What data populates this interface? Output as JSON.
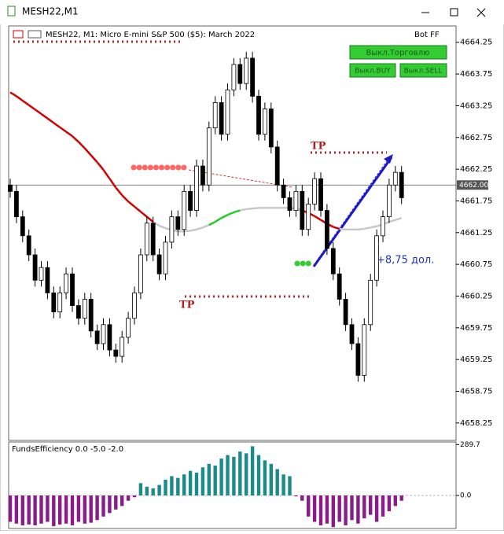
{
  "window_title": "MESH22,M1",
  "chart_data": [
    {
      "type": "candlestick",
      "title": "MESH22, M1:  Micro E-mini S&P 500 ($5): March 2022",
      "badge": "Bot FF",
      "buttons": [
        "Выкл.Торговлю",
        "Выкл.BUY",
        "Выкл.SELL"
      ],
      "annotations": [
        "TP",
        "TP",
        "+8,75 дол."
      ],
      "current_price": {
        "value": 4662.0,
        "label": "4662.00"
      },
      "ylim": [
        4658.0,
        4664.47
      ],
      "yticks": [
        4664.25,
        4663.75,
        4663.25,
        4662.75,
        4662.25,
        4661.75,
        4661.25,
        4660.75,
        4660.25,
        4659.75,
        4659.25,
        4658.75,
        4658.25
      ],
      "open": [
        4662.0,
        4661.9,
        4661.5,
        4661.2,
        4660.9,
        4660.5,
        4660.7,
        4660.3,
        4660.0,
        4660.3,
        4660.6,
        4660.1,
        4659.9,
        4660.2,
        4659.7,
        4659.5,
        4659.8,
        4659.4,
        4659.3,
        4659.6,
        4659.9,
        4660.3,
        4660.9,
        4661.4,
        4660.9,
        4660.6,
        4661.1,
        4661.5,
        4661.3,
        4661.9,
        4661.6,
        4662.3,
        4662.0,
        4662.9,
        4663.3,
        4662.8,
        4663.5,
        4663.9,
        4663.6,
        4664.0,
        4663.4,
        4662.8,
        4663.2,
        4662.6,
        4662.0,
        4661.8,
        4661.6,
        4661.9,
        4661.3,
        4661.7,
        4662.1,
        4661.6,
        4661.0,
        4660.6,
        4660.2,
        4659.8,
        4659.5,
        4659.0,
        4659.8,
        4660.5,
        4661.2,
        4661.5,
        4662.0,
        4662.2
      ],
      "high": [
        4662.1,
        4662.0,
        4661.6,
        4661.3,
        4661.0,
        4660.8,
        4660.8,
        4660.4,
        4660.4,
        4660.7,
        4660.7,
        4660.2,
        4660.3,
        4660.3,
        4659.8,
        4659.9,
        4659.9,
        4659.5,
        4659.7,
        4660.0,
        4660.4,
        4661.0,
        4661.5,
        4661.5,
        4661.0,
        4661.2,
        4661.6,
        4661.6,
        4662.0,
        4662.0,
        4662.4,
        4662.4,
        4663.0,
        4663.4,
        4663.4,
        4663.6,
        4664.0,
        4664.0,
        4664.1,
        4664.1,
        4663.5,
        4663.3,
        4663.3,
        4662.7,
        4662.1,
        4661.9,
        4662.0,
        4662.0,
        4661.8,
        4662.2,
        4662.2,
        4661.7,
        4661.1,
        4660.7,
        4660.3,
        4659.9,
        4659.6,
        4659.9,
        4660.6,
        4661.3,
        4661.6,
        4662.1,
        4662.3,
        4662.3
      ],
      "low": [
        4661.8,
        4661.4,
        4661.1,
        4660.8,
        4660.4,
        4660.4,
        4660.2,
        4659.9,
        4659.9,
        4660.2,
        4660.0,
        4659.8,
        4659.8,
        4659.6,
        4659.4,
        4659.4,
        4659.3,
        4659.2,
        4659.2,
        4659.5,
        4659.8,
        4660.2,
        4660.8,
        4660.8,
        4660.5,
        4660.5,
        4661.0,
        4661.2,
        4661.2,
        4661.5,
        4661.5,
        4661.9,
        4661.9,
        4662.8,
        4662.7,
        4662.7,
        4663.4,
        4663.5,
        4663.5,
        4663.3,
        4662.7,
        4662.7,
        4662.5,
        4661.9,
        4661.7,
        4661.5,
        4661.5,
        4661.2,
        4661.2,
        4661.6,
        4661.5,
        4660.9,
        4660.5,
        4660.1,
        4659.7,
        4659.4,
        4658.9,
        4658.9,
        4659.7,
        4660.4,
        4661.1,
        4661.4,
        4661.9,
        4661.7
      ],
      "close": [
        4661.9,
        4661.5,
        4661.2,
        4660.9,
        4660.5,
        4660.7,
        4660.3,
        4660.0,
        4660.3,
        4660.6,
        4660.1,
        4659.9,
        4660.2,
        4659.7,
        4659.5,
        4659.8,
        4659.4,
        4659.3,
        4659.6,
        4659.9,
        4660.3,
        4660.9,
        4661.4,
        4660.9,
        4660.6,
        4661.1,
        4661.5,
        4661.3,
        4661.9,
        4661.6,
        4662.3,
        4662.0,
        4662.9,
        4663.3,
        4662.8,
        4663.5,
        4663.9,
        4663.6,
        4664.0,
        4663.4,
        4662.8,
        4663.2,
        4662.6,
        4662.0,
        4661.8,
        4661.6,
        4661.9,
        4661.3,
        4661.7,
        4662.1,
        4661.6,
        4661.0,
        4660.6,
        4660.2,
        4659.8,
        4659.5,
        4659.0,
        4659.8,
        4660.5,
        4661.2,
        4661.5,
        4662.0,
        4662.2,
        4661.8
      ],
      "ma": {
        "values": [
          4663.46,
          4663.4,
          4663.33,
          4663.26,
          4663.19,
          4663.12,
          4663.05,
          4662.98,
          4662.91,
          4662.84,
          4662.77,
          4662.68,
          4662.58,
          4662.47,
          4662.36,
          4662.24,
          4662.1,
          4661.96,
          4661.84,
          4661.74,
          4661.66,
          4661.58,
          4661.5,
          4661.42,
          4661.36,
          4661.32,
          4661.29,
          4661.27,
          4661.27,
          4661.28,
          4661.3,
          4661.33,
          4661.37,
          4661.42,
          4661.48,
          4661.53,
          4661.57,
          4661.6,
          4661.62,
          4661.63,
          4661.64,
          4661.64,
          4661.64,
          4661.64,
          4661.64,
          4661.64,
          4661.63,
          4661.6,
          4661.56,
          4661.51,
          4661.45,
          4661.39,
          4661.34,
          4661.31,
          4661.3,
          4661.3,
          4661.3,
          4661.31,
          4661.33,
          4661.35,
          4661.38,
          4661.42,
          4661.45,
          4661.48
        ],
        "colors": [
          "#d40000",
          "#d40000",
          "#d40000",
          "#d40000",
          "#d40000",
          "#d40000",
          "#d40000",
          "#d40000",
          "#d40000",
          "#d40000",
          "#d40000",
          "#d40000",
          "#d40000",
          "#d40000",
          "#d40000",
          "#d40000",
          "#d40000",
          "#d40000",
          "#d40000",
          "#d40000",
          "#d40000",
          "#d40000",
          "#d40000",
          "#c8c8c8",
          "#c8c8c8",
          "#c8c8c8",
          "#c8c8c8",
          "#c8c8c8",
          "#c8c8c8",
          "#c8c8c8",
          "#c8c8c8",
          "#c8c8c8",
          "#22cc22",
          "#22cc22",
          "#22cc22",
          "#22cc22",
          "#22cc22",
          "#c8c8c8",
          "#c8c8c8",
          "#c8c8c8",
          "#c8c8c8",
          "#c8c8c8",
          "#c8c8c8",
          "#c8c8c8",
          "#c8c8c8",
          "#c8c8c8",
          "#c8c8c8",
          "#d40000",
          "#d40000",
          "#d40000",
          "#d40000",
          "#d40000",
          "#d40000",
          "#c8c8c8",
          "#c8c8c8",
          "#c8c8c8",
          "#c8c8c8",
          "#c8c8c8",
          "#c8c8c8",
          "#c8c8c8",
          "#c8c8c8",
          "#c8c8c8",
          "#c8c8c8",
          "#c8c8c8"
        ]
      }
    },
    {
      "type": "bar",
      "title": "FundsEfficiency 0.0 -5.0 -2.0",
      "ylim": [
        -188,
        300
      ],
      "yticks": [
        289.7,
        {
          "value": 0,
          "label": "0.0"
        }
      ],
      "positive_color": "#1a8a8a",
      "negative_color": "#8b1a8b",
      "values": [
        -150,
        -160,
        -170,
        -165,
        -170,
        -160,
        -150,
        -175,
        -165,
        -160,
        -170,
        -150,
        -160,
        -155,
        -140,
        -120,
        -100,
        -80,
        -60,
        -30,
        -10,
        70,
        50,
        40,
        60,
        90,
        110,
        100,
        120,
        140,
        130,
        160,
        180,
        170,
        210,
        230,
        220,
        250,
        240,
        280,
        230,
        200,
        180,
        150,
        120,
        110,
        -5,
        -30,
        -120,
        -150,
        -170,
        -160,
        -180,
        -150,
        -170,
        -140,
        -160,
        -130,
        -110,
        -150,
        -120,
        -90,
        -60,
        -30
      ]
    }
  ]
}
